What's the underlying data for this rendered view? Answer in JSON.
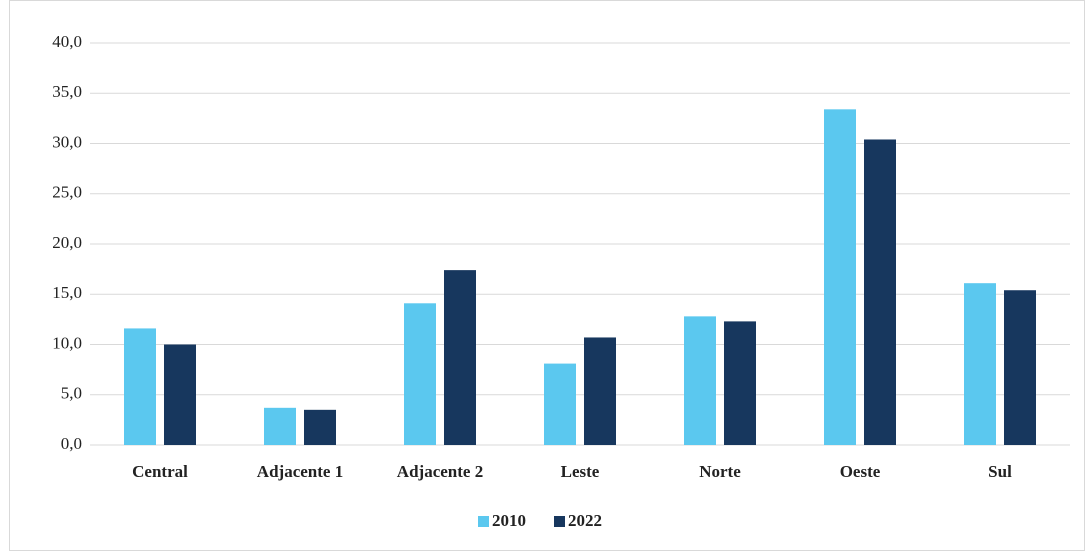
{
  "chart_data": {
    "type": "bar",
    "categories": [
      "Central",
      "Adjacente 1",
      "Adjacente 2",
      "Leste",
      "Norte",
      "Oeste",
      "Sul"
    ],
    "series": [
      {
        "name": "2010",
        "color": "#5bc8ef",
        "values": [
          11.6,
          3.7,
          14.1,
          8.1,
          12.8,
          33.4,
          16.1
        ]
      },
      {
        "name": "2022",
        "color": "#17375e",
        "values": [
          10.0,
          3.5,
          17.4,
          10.7,
          12.3,
          30.4,
          15.4
        ]
      }
    ],
    "ylim": [
      0,
      40
    ],
    "yticks": [
      {
        "value": 0,
        "label": "0,0"
      },
      {
        "value": 5,
        "label": "5,0"
      },
      {
        "value": 10,
        "label": "10,0"
      },
      {
        "value": 15,
        "label": "15,0"
      },
      {
        "value": 20,
        "label": "20,0"
      },
      {
        "value": 25,
        "label": "25,0"
      },
      {
        "value": 30,
        "label": "30,0"
      },
      {
        "value": 35,
        "label": "35,0"
      },
      {
        "value": 40,
        "label": "40,0"
      }
    ],
    "grid": true,
    "legend": "bottom"
  }
}
